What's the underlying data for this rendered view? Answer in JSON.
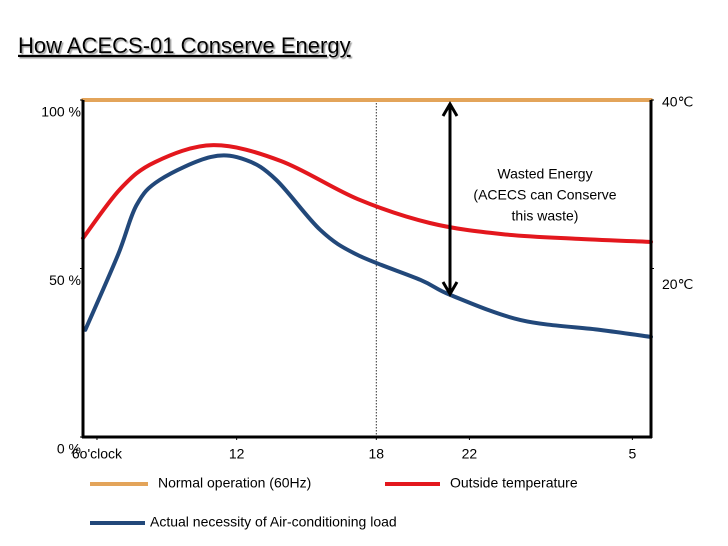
{
  "chart_data": {
    "type": "line",
    "title": "How ACECS-01 Conserve Energy",
    "xlim": [
      5.4,
      29.8
    ],
    "xticks": [
      {
        "value": 6,
        "label": "6o'clock"
      },
      12,
      18,
      22,
      {
        "value": 29,
        "label": "5"
      }
    ],
    "ylim": [
      0,
      100
    ],
    "yticks": [
      {
        "value": 0,
        "label": "0 %"
      },
      {
        "value": 50,
        "label": "50 %"
      },
      {
        "value": 100,
        "label": "100 %"
      }
    ],
    "y2lim": [
      0,
      40
    ],
    "y2ticks": [
      {
        "value": 20,
        "label": "20℃"
      },
      {
        "value": 40,
        "label": "40℃"
      }
    ],
    "marker_line_x": 18,
    "annotation": [
      "Wasted Energy",
      "(ACECS can Conserve",
      "this waste)"
    ],
    "series": [
      {
        "name": "Normal operation (60Hz)",
        "color": "#e3a45a",
        "x": [
          5.4,
          29.8
        ],
        "values": [
          100,
          100
        ]
      },
      {
        "name": "Outside temperature",
        "color": "#e3171d",
        "x": [
          5.4,
          7,
          8.5,
          11,
          13.9,
          17.2,
          20.3,
          23.4,
          26.7,
          29.8
        ],
        "values": [
          59,
          73.6,
          81.6,
          86.6,
          81.9,
          70.6,
          63.5,
          60.2,
          58.8,
          57.9
        ]
      },
      {
        "name": "Actual necessity of  Air-conditioning load",
        "color": "#22487a",
        "x": [
          5.5,
          6.9,
          7.7,
          8.7,
          10.9,
          12.4,
          13.7,
          15.6,
          17.2,
          19.9,
          21.2,
          24.2,
          27.6,
          29.8
        ],
        "values": [
          31.8,
          54,
          68.8,
          76.3,
          83.1,
          82.2,
          76.3,
          61.4,
          54,
          46.6,
          42.1,
          34.7,
          31.8,
          29.7
        ]
      }
    ]
  }
}
